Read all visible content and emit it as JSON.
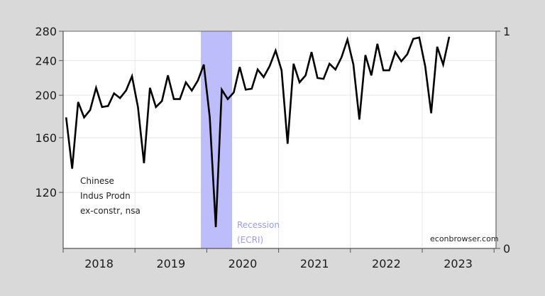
{
  "chart_data": {
    "type": "line",
    "title": "",
    "xlabel": "",
    "ylabel": "",
    "y_scale": "log",
    "ylim": [
      89.4,
      280
    ],
    "y2lim": [
      0,
      1
    ],
    "yticks": [
      120,
      160,
      200,
      240,
      280
    ],
    "y2ticks": [
      0,
      1
    ],
    "xtick_labels": [
      "2018",
      "2019",
      "2020",
      "2021",
      "2022",
      "2023"
    ],
    "grid": true,
    "annotation": [
      "Chinese",
      "Indus Prodn",
      "ex-constr, nsa"
    ],
    "recession_label": [
      "Recession",
      "(ECRI)"
    ],
    "recession_span": {
      "start": "2019-11",
      "end": "2020-04"
    },
    "credit": "econbrowser.com",
    "series": [
      {
        "name": "Chinese Indus Prodn ex-constr, nsa",
        "color": "#000000",
        "start": "2018-01",
        "values": [
          178,
          136,
          193,
          178,
          185,
          208,
          188,
          189,
          202,
          197,
          205,
          221,
          188,
          140,
          208,
          188,
          194,
          222,
          196,
          196,
          214,
          205,
          216,
          235,
          178,
          100,
          206,
          196,
          203,
          232,
          206,
          207,
          229,
          220,
          233,
          253,
          228,
          155,
          236,
          214,
          222,
          251,
          219,
          218,
          236,
          229,
          244,
          268,
          235,
          176,
          247,
          222,
          262,
          228,
          228,
          251,
          239,
          248,
          269,
          271,
          233,
          182,
          258,
          235,
          272
        ]
      }
    ]
  },
  "recession_color": "#bdbdfb",
  "background_color": "#d9d9d9"
}
